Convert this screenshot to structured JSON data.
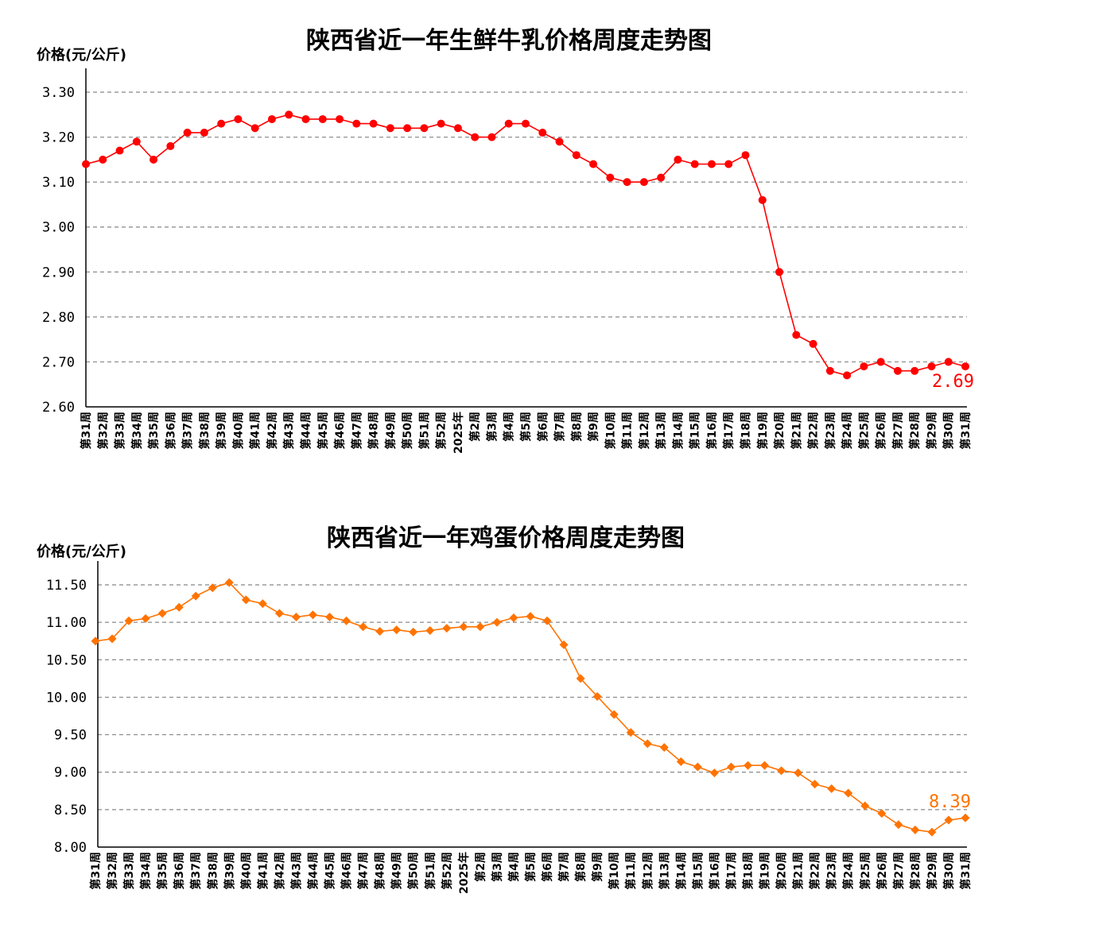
{
  "chart_data": [
    {
      "type": "line",
      "title": "陕西省近一年生鲜牛乳价格周度走势图",
      "ylabel": "价格(元/公斤)",
      "ylim": [
        2.6,
        3.3
      ],
      "yticks": [
        "2.60",
        "2.70",
        "2.80",
        "2.90",
        "3.00",
        "3.10",
        "3.20",
        "3.30"
      ],
      "grid": true,
      "marker": "circle",
      "color": "#ff0000",
      "end_label": "2.69",
      "categories": [
        "第31周",
        "第32周",
        "第33周",
        "第34周",
        "第35周",
        "第36周",
        "第37周",
        "第38周",
        "第39周",
        "第40周",
        "第41周",
        "第42周",
        "第43周",
        "第44周",
        "第45周",
        "第46周",
        "第47周",
        "第48周",
        "第49周",
        "第50周",
        "第51周",
        "第52周",
        "2025年",
        "第2周",
        "第3周",
        "第4周",
        "第5周",
        "第6周",
        "第7周",
        "第8周",
        "第9周",
        "第10周",
        "第11周",
        "第12周",
        "第13周",
        "第14周",
        "第15周",
        "第16周",
        "第17周",
        "第18周",
        "第19周",
        "第20周",
        "第21周",
        "第22周",
        "第23周",
        "第24周",
        "第25周",
        "第26周",
        "第27周",
        "第28周",
        "第29周",
        "第30周",
        "第31周"
      ],
      "values": [
        3.14,
        3.15,
        3.17,
        3.19,
        3.15,
        3.18,
        3.21,
        3.21,
        3.23,
        3.24,
        3.22,
        3.24,
        3.25,
        3.24,
        3.24,
        3.24,
        3.23,
        3.23,
        3.22,
        3.22,
        3.22,
        3.23,
        3.22,
        3.2,
        3.2,
        3.23,
        3.23,
        3.21,
        3.19,
        3.16,
        3.14,
        3.11,
        3.1,
        3.1,
        3.11,
        3.15,
        3.14,
        3.14,
        3.14,
        3.16,
        3.06,
        2.9,
        2.76,
        2.74,
        2.68,
        2.67,
        2.69,
        2.7,
        2.68,
        2.68,
        2.69,
        2.7,
        2.69
      ]
    },
    {
      "type": "line",
      "title": "陕西省近一年鸡蛋价格周度走势图",
      "ylabel": "价格(元/公斤)",
      "ylim": [
        8.0,
        11.5
      ],
      "yticks": [
        "8.00",
        "8.50",
        "9.00",
        "9.50",
        "10.00",
        "10.50",
        "11.00",
        "11.50"
      ],
      "grid": true,
      "marker": "diamond",
      "color": "#ff7300",
      "end_label": "8.39",
      "categories": [
        "第31周",
        "第32周",
        "第33周",
        "第34周",
        "第35周",
        "第36周",
        "第37周",
        "第38周",
        "第39周",
        "第40周",
        "第41周",
        "第42周",
        "第43周",
        "第44周",
        "第45周",
        "第46周",
        "第47周",
        "第48周",
        "第49周",
        "第50周",
        "第51周",
        "第52周",
        "2025年",
        "第2周",
        "第3周",
        "第4周",
        "第5周",
        "第6周",
        "第7周",
        "第8周",
        "第9周",
        "第10周",
        "第11周",
        "第12周",
        "第13周",
        "第14周",
        "第15周",
        "第16周",
        "第17周",
        "第18周",
        "第19周",
        "第20周",
        "第21周",
        "第22周",
        "第23周",
        "第24周",
        "第25周",
        "第26周",
        "第27周",
        "第28周",
        "第29周",
        "第30周",
        "第31周"
      ],
      "values": [
        10.75,
        10.78,
        11.02,
        11.05,
        11.12,
        11.2,
        11.35,
        11.46,
        11.53,
        11.3,
        11.25,
        11.12,
        11.07,
        11.1,
        11.07,
        11.02,
        10.94,
        10.88,
        10.9,
        10.87,
        10.89,
        10.92,
        10.94,
        10.94,
        11.0,
        11.06,
        11.08,
        11.02,
        10.7,
        10.25,
        10.01,
        9.77,
        9.53,
        9.38,
        9.33,
        9.14,
        9.07,
        8.99,
        9.07,
        9.09,
        9.09,
        9.02,
        8.99,
        8.84,
        8.78,
        8.72,
        8.55,
        8.45,
        8.3,
        8.23,
        8.2,
        8.36,
        8.39
      ]
    }
  ]
}
